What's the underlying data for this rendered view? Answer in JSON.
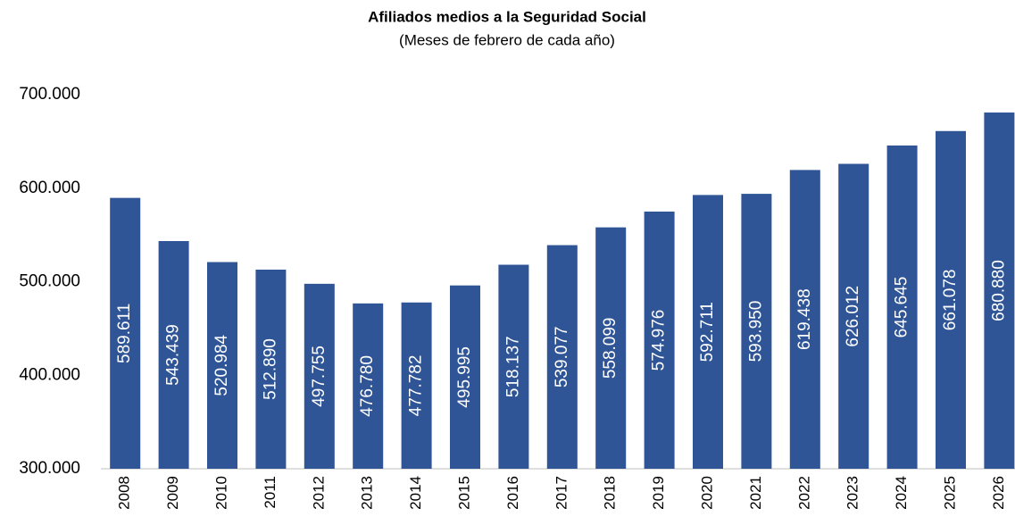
{
  "chart_data": {
    "type": "bar",
    "title": "Afiliados medios a la Seguridad Social",
    "subtitle": "(Meses de febrero de cada año)",
    "categories": [
      "2008",
      "2009",
      "2010",
      "2011",
      "2012",
      "2013",
      "2014",
      "2015",
      "2016",
      "2017",
      "2018",
      "2019",
      "2020",
      "2021",
      "2022",
      "2023",
      "2024",
      "2025",
      "2026"
    ],
    "values": [
      589611,
      543439,
      520984,
      512890,
      497755,
      476780,
      477782,
      495995,
      518137,
      539077,
      558099,
      574976,
      592711,
      593950,
      619438,
      626012,
      645645,
      661078,
      680880
    ],
    "value_labels": [
      "589.611",
      "543.439",
      "520.984",
      "512.890",
      "497.755",
      "476.780",
      "477.782",
      "495.995",
      "518.137",
      "539.077",
      "558.099",
      "574.976",
      "592.711",
      "593.950",
      "619.438",
      "626.012",
      "645.645",
      "661.078",
      "680.880"
    ],
    "color": "#2f5597",
    "ylim": [
      300000,
      700000
    ],
    "yticks": [
      {
        "value": 300000,
        "label": "300.000"
      },
      {
        "value": 400000,
        "label": "400.000"
      },
      {
        "value": 500000,
        "label": "500.000"
      },
      {
        "value": 600000,
        "label": "600.000"
      },
      {
        "value": 700000,
        "label": "700.000"
      }
    ],
    "grid": false
  }
}
